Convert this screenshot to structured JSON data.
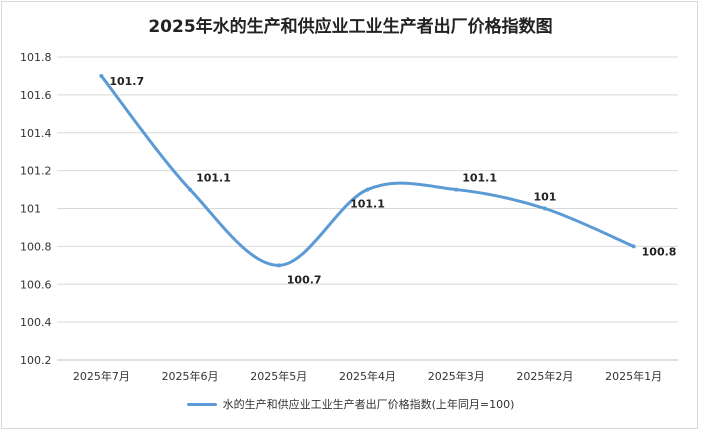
{
  "colors": {
    "line": "#5b9bd5",
    "grid": "#d9d9d9",
    "axis": "#bfbfbf"
  },
  "chart_data": {
    "type": "line",
    "title": "2025年水的生产和供应业工业生产者出厂价格指数图",
    "categories": [
      "2025年7月",
      "2025年6月",
      "2025年5月",
      "2025年4月",
      "2025年3月",
      "2025年2月",
      "2025年1月"
    ],
    "series": [
      {
        "name": "水的生产和供应业工业生产者出厂价格指数(上年同月=100)",
        "values": [
          101.7,
          101.1,
          100.7,
          101.1,
          101.1,
          101,
          100.8
        ],
        "labels": [
          "101.7",
          "101.1",
          "100.7",
          "101.1",
          "101.1",
          "101",
          "100.8"
        ]
      }
    ],
    "ylim": [
      100.2,
      101.8
    ],
    "yticks": [
      "100.2",
      "100.4",
      "100.6",
      "100.8",
      "101",
      "101.2",
      "101.4",
      "101.6",
      "101.8"
    ],
    "grid": true,
    "legend": "bottom"
  }
}
